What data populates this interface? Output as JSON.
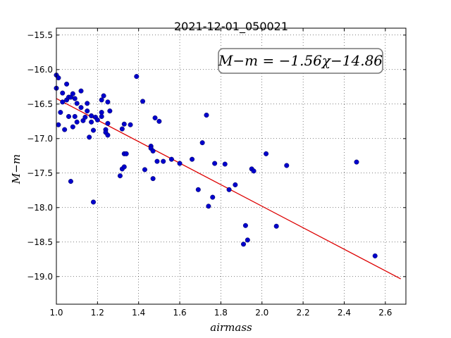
{
  "chart_data": {
    "type": "scatter",
    "title": "2021-12-01_050021",
    "xlabel": "airmass",
    "ylabel": "M−m",
    "xlim": [
      1.0,
      2.7
    ],
    "ylim": [
      -19.4,
      -15.4
    ],
    "xticks": [
      "1.0",
      "1.2",
      "1.4",
      "1.6",
      "1.8",
      "2.0",
      "2.2",
      "2.4",
      "2.6"
    ],
    "yticks": [
      "−15.5",
      "−16.0",
      "−16.5",
      "−17.0",
      "−17.5",
      "−18.0",
      "−18.5",
      "−19.0"
    ],
    "grid": true,
    "annotation": "M−m = −1.56χ−14.86",
    "colors": {
      "points": "#0000cc",
      "fit": "#dd0000"
    },
    "fit_line": {
      "slope": -1.56,
      "intercept": -14.86,
      "x_range": [
        1.0,
        2.675
      ]
    },
    "points": [
      [
        1.0,
        -16.08
      ],
      [
        1.01,
        -16.12
      ],
      [
        1.0,
        -16.27
      ],
      [
        1.03,
        -16.34
      ],
      [
        1.02,
        -16.62
      ],
      [
        1.01,
        -16.8
      ],
      [
        1.03,
        -16.47
      ],
      [
        1.04,
        -16.87
      ],
      [
        1.05,
        -16.21
      ],
      [
        1.05,
        -16.44
      ],
      [
        1.06,
        -16.4
      ],
      [
        1.07,
        -16.4
      ],
      [
        1.06,
        -16.68
      ],
      [
        1.07,
        -17.62
      ],
      [
        1.08,
        -16.35
      ],
      [
        1.08,
        -16.83
      ],
      [
        1.09,
        -16.42
      ],
      [
        1.09,
        -16.68
      ],
      [
        1.1,
        -16.76
      ],
      [
        1.1,
        -16.49
      ],
      [
        1.12,
        -16.31
      ],
      [
        1.12,
        -16.55
      ],
      [
        1.13,
        -16.74
      ],
      [
        1.14,
        -16.69
      ],
      [
        1.15,
        -16.49
      ],
      [
        1.15,
        -16.6
      ],
      [
        1.16,
        -16.98
      ],
      [
        1.17,
        -16.67
      ],
      [
        1.17,
        -16.76
      ],
      [
        1.18,
        -16.88
      ],
      [
        1.18,
        -17.92
      ],
      [
        1.19,
        -16.69
      ],
      [
        1.2,
        -16.73
      ],
      [
        1.22,
        -16.44
      ],
      [
        1.22,
        -16.62
      ],
      [
        1.22,
        -16.68
      ],
      [
        1.23,
        -16.38
      ],
      [
        1.24,
        -16.87
      ],
      [
        1.24,
        -16.91
      ],
      [
        1.25,
        -16.95
      ],
      [
        1.25,
        -16.78
      ],
      [
        1.25,
        -16.47
      ],
      [
        1.26,
        -16.6
      ],
      [
        1.31,
        -17.54
      ],
      [
        1.32,
        -16.86
      ],
      [
        1.32,
        -17.44
      ],
      [
        1.33,
        -16.79
      ],
      [
        1.33,
        -17.22
      ],
      [
        1.33,
        -17.41
      ],
      [
        1.34,
        -17.22
      ],
      [
        1.36,
        -16.8
      ],
      [
        1.39,
        -16.1
      ],
      [
        1.42,
        -16.46
      ],
      [
        1.43,
        -17.45
      ],
      [
        1.46,
        -17.11
      ],
      [
        1.46,
        -17.14
      ],
      [
        1.47,
        -17.18
      ],
      [
        1.47,
        -17.58
      ],
      [
        1.48,
        -16.7
      ],
      [
        1.5,
        -16.75
      ],
      [
        1.49,
        -17.33
      ],
      [
        1.52,
        -17.33
      ],
      [
        1.56,
        -17.3
      ],
      [
        1.6,
        -17.36
      ],
      [
        1.66,
        -17.3
      ],
      [
        1.69,
        -17.74
      ],
      [
        1.71,
        -17.06
      ],
      [
        1.73,
        -16.66
      ],
      [
        1.74,
        -17.98
      ],
      [
        1.76,
        -17.85
      ],
      [
        1.77,
        -17.36
      ],
      [
        1.82,
        -17.37
      ],
      [
        1.84,
        -17.74
      ],
      [
        1.87,
        -17.67
      ],
      [
        1.91,
        -18.53
      ],
      [
        1.92,
        -18.26
      ],
      [
        1.93,
        -18.47
      ],
      [
        1.95,
        -17.44
      ],
      [
        1.96,
        -17.47
      ],
      [
        2.02,
        -17.22
      ],
      [
        2.07,
        -18.27
      ],
      [
        2.12,
        -17.39
      ],
      [
        2.46,
        -17.34
      ],
      [
        2.55,
        -18.7
      ]
    ]
  }
}
